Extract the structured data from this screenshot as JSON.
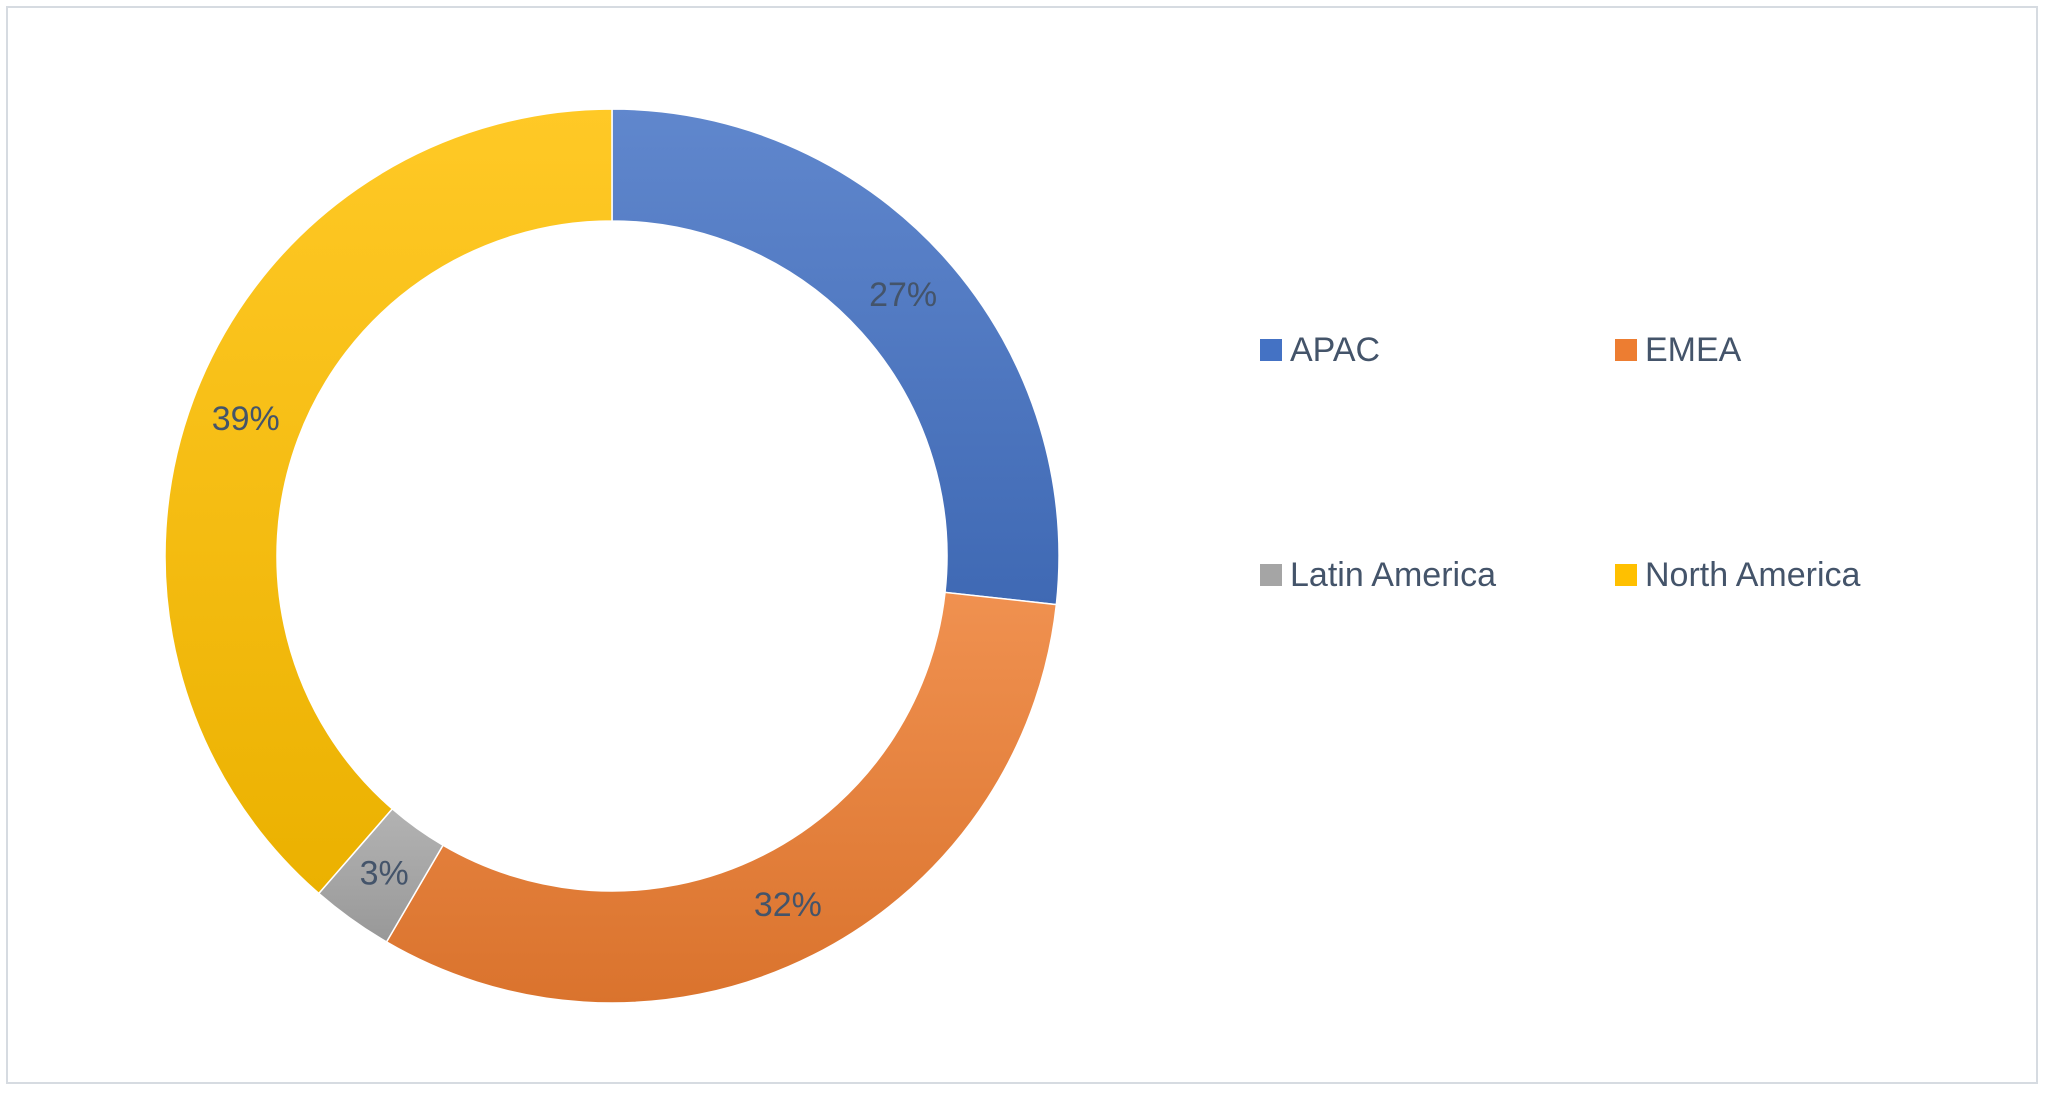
{
  "chart_data": {
    "type": "pie",
    "style": "donut",
    "categories": [
      "APAC",
      "EMEA",
      "Latin America",
      "North America"
    ],
    "values": [
      27,
      32,
      3,
      39
    ],
    "labels": [
      "27%",
      "32%",
      "3%",
      "39%"
    ],
    "colors": [
      "#4472c4",
      "#ed7d31",
      "#a5a5a5",
      "#ffc000"
    ],
    "legend_position": "right",
    "start_angle_deg": 0,
    "direction": "clockwise"
  },
  "legend": {
    "items": [
      {
        "label": "APAC",
        "color": "#4472c4"
      },
      {
        "label": "EMEA",
        "color": "#ed7d31"
      },
      {
        "label": "Latin America",
        "color": "#a5a5a5"
      },
      {
        "label": "North America",
        "color": "#ffc000"
      }
    ]
  }
}
